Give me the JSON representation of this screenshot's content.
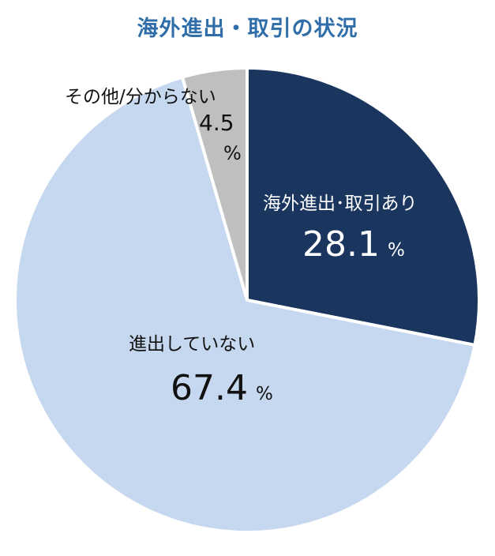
{
  "title": "海外進出・取引の状況",
  "colors": {
    "slice_advance": "#1a365f",
    "slice_none": "#c6d8ef",
    "slice_other": "#bfbfbf",
    "title": "#2f6ea8",
    "separator": "#ffffff"
  },
  "chart_data": {
    "type": "pie",
    "title": "海外進出・取引の状況",
    "unit": "%",
    "start_angle_deg": 0,
    "direction": "clockwise",
    "slices": [
      {
        "label": "海外進出･取引あり",
        "value": 28.1,
        "color": "#1a365f"
      },
      {
        "label": "進出していない",
        "value": 67.4,
        "color": "#c6d8ef"
      },
      {
        "label": "その他/分からない",
        "value": 4.5,
        "color": "#bfbfbf"
      }
    ]
  },
  "labels": {
    "advance": {
      "name": "海外進出･取引あり",
      "value": "28.1",
      "unit": "%"
    },
    "none": {
      "name": "進出していない",
      "value": "67.4",
      "unit": "%"
    },
    "other": {
      "name": "その他/分からない",
      "value": "4.5",
      "unit": "%"
    }
  }
}
